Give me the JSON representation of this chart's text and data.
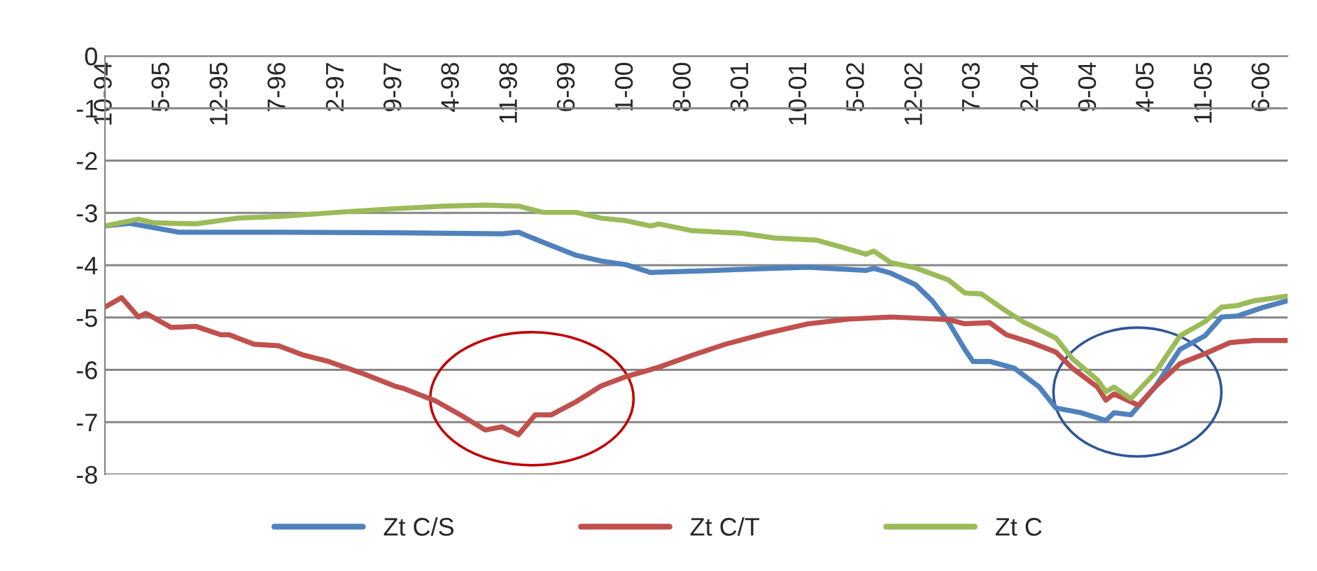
{
  "chart_data": {
    "type": "line",
    "xlim": [
      "1994-10",
      "2006-09"
    ],
    "xticks": [
      {
        "value": "1994-10",
        "label": "10-94"
      },
      {
        "value": "1995-05",
        "label": "5-95"
      },
      {
        "value": "1995-12",
        "label": "12-95"
      },
      {
        "value": "1996-07",
        "label": "7-96"
      },
      {
        "value": "1997-02",
        "label": "2-97"
      },
      {
        "value": "1997-09",
        "label": "9-97"
      },
      {
        "value": "1998-04",
        "label": "4-98"
      },
      {
        "value": "1998-11",
        "label": "11-98"
      },
      {
        "value": "1999-06",
        "label": "6-99"
      },
      {
        "value": "2000-01",
        "label": "1-00"
      },
      {
        "value": "2000-08",
        "label": "8-00"
      },
      {
        "value": "2001-03",
        "label": "3-01"
      },
      {
        "value": "2001-10",
        "label": "10-01"
      },
      {
        "value": "2002-05",
        "label": "5-02"
      },
      {
        "value": "2002-12",
        "label": "12-02"
      },
      {
        "value": "2003-07",
        "label": "7-03"
      },
      {
        "value": "2004-02",
        "label": "2-04"
      },
      {
        "value": "2004-09",
        "label": "9-04"
      },
      {
        "value": "2005-04",
        "label": "4-05"
      },
      {
        "value": "2005-11",
        "label": "11-05"
      },
      {
        "value": "2006-06",
        "label": "6-06"
      }
    ],
    "ylim": [
      -8,
      0
    ],
    "yticks": [
      -8,
      -7,
      -6,
      -5,
      -4,
      -3,
      -2,
      -1,
      0
    ],
    "grid": "y",
    "legend": "bottom",
    "marker": "none",
    "line_style": "solid",
    "series": [
      {
        "name": "Zt C/S",
        "color": "#4f81bd",
        "x": [
          "1994-10",
          "1995-01",
          "1995-07",
          "1996-07",
          "1997-09",
          "1998-10",
          "1998-12",
          "1999-03",
          "1999-07",
          "1999-10",
          "2000-01",
          "2000-04",
          "2000-08",
          "2001-05",
          "2001-11",
          "2002-06",
          "2002-07",
          "2002-09",
          "2002-12",
          "2003-02",
          "2003-04",
          "2003-06",
          "2003-07",
          "2003-09",
          "2003-12",
          "2004-03",
          "2004-05",
          "2004-08",
          "2004-11",
          "2004-12",
          "2005-02",
          "2005-05",
          "2005-08",
          "2005-11",
          "2006-01",
          "2006-03",
          "2006-06",
          "2006-09"
        ],
        "values": [
          -3.25,
          -3.2,
          -3.37,
          -3.37,
          -3.38,
          -3.4,
          -3.37,
          -3.56,
          -3.81,
          -3.92,
          -3.99,
          -4.14,
          -4.12,
          -4.07,
          -4.04,
          -4.1,
          -4.06,
          -4.15,
          -4.37,
          -4.68,
          -5.08,
          -5.61,
          -5.84,
          -5.84,
          -5.97,
          -6.33,
          -6.73,
          -6.82,
          -6.97,
          -6.82,
          -6.86,
          -6.33,
          -5.61,
          -5.35,
          -4.99,
          -4.97,
          -4.81,
          -4.68
        ]
      },
      {
        "name": "Zt C/T",
        "color": "#c0504d",
        "x": [
          "1994-10",
          "1994-12",
          "1995-02",
          "1995-03",
          "1995-06",
          "1995-09",
          "1995-12",
          "1996-01",
          "1996-04",
          "1996-07",
          "1996-10",
          "1997-01",
          "1997-05",
          "1997-09",
          "1997-10",
          "1998-02",
          "1998-05",
          "1998-08",
          "1998-10",
          "1998-12",
          "1999-02",
          "1999-04",
          "1999-07",
          "1999-10",
          "2000-01",
          "2000-05",
          "2000-09",
          "2001-01",
          "2001-06",
          "2001-11",
          "2002-04",
          "2002-09",
          "2003-04",
          "2003-06",
          "2003-09",
          "2003-11",
          "2004-02",
          "2004-05",
          "2004-07",
          "2004-10",
          "2004-11",
          "2004-12",
          "2005-03",
          "2005-05",
          "2005-08",
          "2005-11",
          "2006-02",
          "2006-05",
          "2006-09"
        ],
        "values": [
          -4.8,
          -4.62,
          -4.99,
          -4.92,
          -5.19,
          -5.17,
          -5.33,
          -5.33,
          -5.51,
          -5.54,
          -5.72,
          -5.84,
          -6.06,
          -6.31,
          -6.35,
          -6.6,
          -6.86,
          -7.15,
          -7.09,
          -7.24,
          -6.86,
          -6.86,
          -6.61,
          -6.31,
          -6.13,
          -5.95,
          -5.72,
          -5.51,
          -5.3,
          -5.12,
          -5.03,
          -4.99,
          -5.04,
          -5.12,
          -5.1,
          -5.33,
          -5.48,
          -5.66,
          -5.97,
          -6.33,
          -6.58,
          -6.46,
          -6.68,
          -6.33,
          -5.88,
          -5.69,
          -5.48,
          -5.44,
          -5.44
        ]
      },
      {
        "name": "Zt C",
        "color": "#9bbb59",
        "x": [
          "1994-10",
          "1995-02",
          "1995-04",
          "1995-09",
          "1996-02",
          "1996-07",
          "1997-02",
          "1997-09",
          "1998-03",
          "1998-08",
          "1998-12",
          "1999-03",
          "1999-07",
          "1999-10",
          "2000-01",
          "2000-04",
          "2000-05",
          "2000-09",
          "2001-03",
          "2001-07",
          "2001-12",
          "2002-03",
          "2002-06",
          "2002-07",
          "2002-09",
          "2002-12",
          "2003-04",
          "2003-06",
          "2003-08",
          "2003-11",
          "2004-01",
          "2004-05",
          "2004-07",
          "2004-10",
          "2004-11",
          "2004-12",
          "2005-02",
          "2005-05",
          "2005-08",
          "2005-11",
          "2006-01",
          "2006-03",
          "2006-05",
          "2006-09"
        ],
        "values": [
          -3.25,
          -3.12,
          -3.19,
          -3.21,
          -3.1,
          -3.07,
          -2.99,
          -2.92,
          -2.87,
          -2.85,
          -2.87,
          -2.99,
          -2.99,
          -3.1,
          -3.15,
          -3.25,
          -3.21,
          -3.34,
          -3.39,
          -3.48,
          -3.52,
          -3.65,
          -3.79,
          -3.73,
          -3.95,
          -4.05,
          -4.28,
          -4.53,
          -4.55,
          -4.88,
          -5.08,
          -5.39,
          -5.79,
          -6.19,
          -6.42,
          -6.33,
          -6.55,
          -6.06,
          -5.35,
          -5.08,
          -4.8,
          -4.77,
          -4.68,
          -4.59
        ]
      }
    ]
  }
}
